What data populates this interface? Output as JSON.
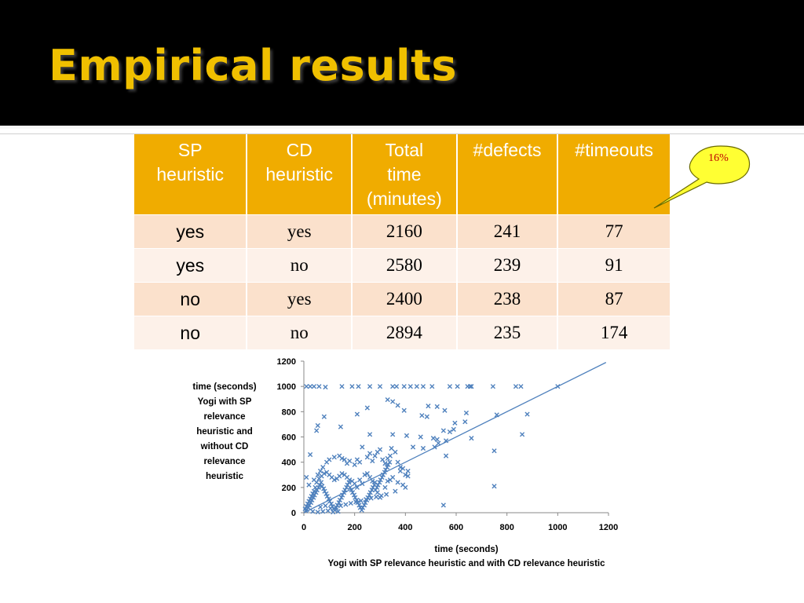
{
  "slide": {
    "title": "Empirical results",
    "callout": {
      "label": "16%",
      "color": "#c00000",
      "fill": "#ffff33"
    }
  },
  "table": {
    "headers": [
      [
        "SP",
        "heuristic"
      ],
      [
        "CD",
        "heuristic"
      ],
      [
        "Total",
        "time",
        "(minutes)"
      ],
      [
        "#defects"
      ],
      [
        "#timeouts"
      ]
    ],
    "rows": [
      [
        "yes",
        "yes",
        "2160",
        "241",
        "77"
      ],
      [
        "yes",
        "no",
        "2580",
        "239",
        "91"
      ],
      [
        "no",
        "yes",
        "2400",
        "238",
        "87"
      ],
      [
        "no",
        "no",
        "2894",
        "235",
        "174"
      ]
    ],
    "header_color": "#f0ac00"
  },
  "chart_data": {
    "type": "scatter",
    "xlabel": [
      "time (seconds)",
      "Yogi with SP relevance heuristic and with CD relevance heuristic"
    ],
    "ylabel": [
      "time (seconds)",
      "Yogi  with SP",
      "relevance",
      "heuristic and",
      "without CD",
      "relevance",
      "heuristic"
    ],
    "xlim": [
      0,
      1200
    ],
    "ylim": [
      0,
      1200
    ],
    "xticks": [
      "0",
      "200",
      "400",
      "600",
      "800",
      "1000",
      "1200"
    ],
    "yticks": [
      "0",
      "200",
      "400",
      "600",
      "800",
      "1000",
      "1200"
    ],
    "marker_color": "#4f81bd",
    "grid": false,
    "reference_line": [
      [
        0,
        0
      ],
      [
        1190,
        1190
      ]
    ],
    "points": [
      [
        10,
        1000
      ],
      [
        25,
        1000
      ],
      [
        40,
        1000
      ],
      [
        60,
        1000
      ],
      [
        85,
        995
      ],
      [
        150,
        1000
      ],
      [
        190,
        1000
      ],
      [
        215,
        1000
      ],
      [
        260,
        1000
      ],
      [
        300,
        1000
      ],
      [
        350,
        1000
      ],
      [
        365,
        1000
      ],
      [
        395,
        1000
      ],
      [
        420,
        1000
      ],
      [
        445,
        1000
      ],
      [
        470,
        1000
      ],
      [
        505,
        1000
      ],
      [
        575,
        1000
      ],
      [
        605,
        1000
      ],
      [
        645,
        1000
      ],
      [
        655,
        1000
      ],
      [
        660,
        1000
      ],
      [
        745,
        1000
      ],
      [
        835,
        1000
      ],
      [
        855,
        1000
      ],
      [
        1000,
        1000
      ],
      [
        330,
        895
      ],
      [
        350,
        880
      ],
      [
        370,
        850
      ],
      [
        490,
        845
      ],
      [
        525,
        840
      ],
      [
        250,
        830
      ],
      [
        395,
        810
      ],
      [
        210,
        780
      ],
      [
        555,
        810
      ],
      [
        640,
        790
      ],
      [
        880,
        780
      ],
      [
        465,
        770
      ],
      [
        760,
        775
      ],
      [
        80,
        760
      ],
      [
        485,
        760
      ],
      [
        635,
        720
      ],
      [
        595,
        710
      ],
      [
        55,
        690
      ],
      [
        145,
        680
      ],
      [
        50,
        650
      ],
      [
        550,
        650
      ],
      [
        575,
        640
      ],
      [
        590,
        660
      ],
      [
        260,
        620
      ],
      [
        350,
        620
      ],
      [
        405,
        610
      ],
      [
        460,
        600
      ],
      [
        510,
        590
      ],
      [
        525,
        580
      ],
      [
        530,
        550
      ],
      [
        515,
        520
      ],
      [
        470,
        510
      ],
      [
        430,
        520
      ],
      [
        860,
        620
      ],
      [
        750,
        490
      ],
      [
        660,
        590
      ],
      [
        560,
        570
      ],
      [
        560,
        450
      ],
      [
        750,
        210
      ],
      [
        550,
        60
      ],
      [
        25,
        460
      ],
      [
        10,
        280
      ],
      [
        20,
        220
      ],
      [
        40,
        260
      ],
      [
        55,
        300
      ],
      [
        65,
        330
      ],
      [
        75,
        360
      ],
      [
        90,
        400
      ],
      [
        100,
        420
      ],
      [
        120,
        440
      ],
      [
        140,
        450
      ],
      [
        150,
        430
      ],
      [
        160,
        420
      ],
      [
        170,
        390
      ],
      [
        180,
        410
      ],
      [
        200,
        380
      ],
      [
        210,
        420
      ],
      [
        220,
        400
      ],
      [
        230,
        520
      ],
      [
        250,
        440
      ],
      [
        260,
        470
      ],
      [
        270,
        410
      ],
      [
        280,
        450
      ],
      [
        290,
        480
      ],
      [
        300,
        500
      ],
      [
        310,
        420
      ],
      [
        320,
        390
      ],
      [
        330,
        430
      ],
      [
        340,
        450
      ],
      [
        345,
        510
      ],
      [
        360,
        480
      ],
      [
        370,
        400
      ],
      [
        380,
        360
      ],
      [
        390,
        350
      ],
      [
        400,
        300
      ],
      [
        410,
        290
      ],
      [
        290,
        160
      ],
      [
        300,
        120
      ],
      [
        320,
        200
      ],
      [
        330,
        250
      ],
      [
        340,
        260
      ],
      [
        350,
        280
      ],
      [
        360,
        170
      ],
      [
        370,
        240
      ],
      [
        380,
        330
      ],
      [
        390,
        220
      ],
      [
        400,
        200
      ],
      [
        410,
        330
      ],
      [
        210,
        200
      ],
      [
        220,
        260
      ],
      [
        230,
        230
      ],
      [
        240,
        300
      ],
      [
        250,
        310
      ],
      [
        260,
        280
      ],
      [
        270,
        250
      ],
      [
        280,
        240
      ],
      [
        200,
        230
      ],
      [
        190,
        250
      ],
      [
        180,
        260
      ],
      [
        170,
        280
      ],
      [
        160,
        300
      ],
      [
        150,
        310
      ],
      [
        140,
        290
      ],
      [
        130,
        270
      ],
      [
        120,
        260
      ],
      [
        110,
        280
      ],
      [
        100,
        300
      ],
      [
        90,
        320
      ],
      [
        80,
        310
      ],
      [
        70,
        290
      ],
      [
        60,
        270
      ],
      [
        50,
        240
      ],
      [
        45,
        200
      ],
      [
        40,
        170
      ],
      [
        35,
        150
      ],
      [
        30,
        130
      ],
      [
        25,
        110
      ],
      [
        20,
        90
      ],
      [
        15,
        70
      ],
      [
        10,
        50
      ],
      [
        5,
        30
      ],
      [
        8,
        15
      ],
      [
        12,
        25
      ],
      [
        18,
        40
      ],
      [
        22,
        60
      ],
      [
        28,
        80
      ],
      [
        32,
        100
      ],
      [
        38,
        120
      ],
      [
        42,
        140
      ],
      [
        48,
        160
      ],
      [
        52,
        180
      ],
      [
        58,
        200
      ],
      [
        62,
        220
      ],
      [
        68,
        240
      ],
      [
        72,
        210
      ],
      [
        78,
        190
      ],
      [
        82,
        170
      ],
      [
        88,
        150
      ],
      [
        92,
        130
      ],
      [
        98,
        110
      ],
      [
        102,
        90
      ],
      [
        108,
        70
      ],
      [
        112,
        50
      ],
      [
        118,
        30
      ],
      [
        122,
        20
      ],
      [
        128,
        40
      ],
      [
        132,
        60
      ],
      [
        138,
        80
      ],
      [
        142,
        100
      ],
      [
        148,
        120
      ],
      [
        152,
        140
      ],
      [
        158,
        160
      ],
      [
        162,
        180
      ],
      [
        168,
        200
      ],
      [
        172,
        220
      ],
      [
        178,
        240
      ],
      [
        182,
        200
      ],
      [
        188,
        180
      ],
      [
        192,
        160
      ],
      [
        198,
        140
      ],
      [
        202,
        120
      ],
      [
        208,
        100
      ],
      [
        212,
        80
      ],
      [
        218,
        60
      ],
      [
        222,
        40
      ],
      [
        228,
        20
      ],
      [
        232,
        40
      ],
      [
        238,
        60
      ],
      [
        242,
        80
      ],
      [
        248,
        100
      ],
      [
        252,
        120
      ],
      [
        258,
        140
      ],
      [
        262,
        160
      ],
      [
        268,
        180
      ],
      [
        272,
        200
      ],
      [
        278,
        220
      ],
      [
        282,
        180
      ],
      [
        288,
        200
      ],
      [
        292,
        220
      ],
      [
        298,
        240
      ],
      [
        302,
        260
      ],
      [
        308,
        280
      ],
      [
        312,
        300
      ],
      [
        318,
        320
      ],
      [
        322,
        340
      ],
      [
        328,
        360
      ],
      [
        332,
        380
      ],
      [
        338,
        400
      ],
      [
        115,
        5
      ],
      [
        55,
        5
      ],
      [
        35,
        10
      ],
      [
        75,
        10
      ],
      [
        95,
        15
      ],
      [
        135,
        10
      ],
      [
        65,
        45
      ],
      [
        85,
        55
      ],
      [
        105,
        35
      ],
      [
        125,
        45
      ],
      [
        145,
        55
      ],
      [
        165,
        65
      ],
      [
        185,
        75
      ],
      [
        205,
        85
      ],
      [
        225,
        95
      ],
      [
        245,
        105
      ],
      [
        265,
        115
      ],
      [
        285,
        125
      ],
      [
        305,
        135
      ],
      [
        325,
        145
      ]
    ]
  }
}
